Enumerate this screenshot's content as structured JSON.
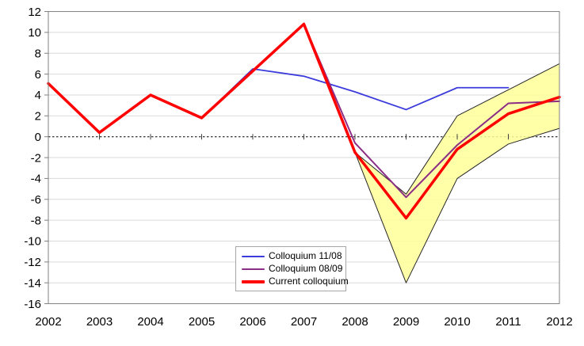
{
  "chart_data": {
    "type": "line",
    "title": "",
    "xlabel": "",
    "ylabel": "",
    "categories": [
      "2002",
      "2003",
      "2004",
      "2005",
      "2006",
      "2007",
      "2008",
      "2009",
      "2010",
      "2011",
      "2012"
    ],
    "ylim": [
      -16,
      12
    ],
    "ytick_step": 2,
    "grid": true,
    "zero_line_dashed": true,
    "legend_position": "inside-bottom-center",
    "series": [
      {
        "name": "Colloquium 11/08",
        "color": "#3C3CDC",
        "width": 1.8,
        "values": [
          5.1,
          0.4,
          4.0,
          1.8,
          6.5,
          5.8,
          4.3,
          2.6,
          4.7,
          4.7,
          null
        ]
      },
      {
        "name": "Colloquium 08/09",
        "color": "#8C2D86",
        "width": 2,
        "values": [
          5.1,
          0.4,
          4.0,
          1.8,
          6.3,
          10.8,
          -0.6,
          -5.8,
          -0.8,
          3.2,
          3.4
        ]
      },
      {
        "name": "Current colloquium",
        "color": "#FF0000",
        "width": 3.5,
        "values": [
          5.1,
          0.4,
          4.0,
          1.8,
          6.3,
          10.8,
          -1.5,
          -7.8,
          -1.2,
          2.2,
          3.8
        ]
      }
    ],
    "band": {
      "name": "uncertainty-range",
      "fill": "#FFFF99",
      "fill_opacity": 0.85,
      "border": "#262626",
      "categories": [
        "2008",
        "2009",
        "2010",
        "2011",
        "2012"
      ],
      "upper": [
        -1.5,
        -5.5,
        2.0,
        4.5,
        7.0
      ],
      "lower": [
        -1.5,
        -14.0,
        -4.0,
        -0.7,
        0.8
      ]
    },
    "axis_colors": {
      "grid": "#D9D9D9",
      "border": "#808080",
      "zero_line": "#000000",
      "category_tick": "#404040",
      "label": "#000000"
    }
  }
}
